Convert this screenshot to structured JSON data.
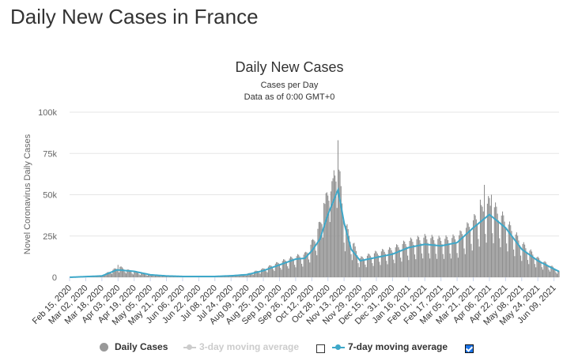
{
  "page": {
    "title": "Daily New Cases in France"
  },
  "chart_data": {
    "type": "bar",
    "title": "Daily New Cases",
    "subtitle_1": "Cases per Day",
    "subtitle_2": "Data as of 0:00 GMT+0",
    "ylabel": "Novel Coronavirus Daily Cases",
    "xlabel": "",
    "ylim": [
      0,
      100000
    ],
    "yticks": [
      0,
      25000,
      50000,
      75000,
      100000
    ],
    "ytick_labels": [
      "0",
      "25k",
      "50k",
      "75k",
      "100k"
    ],
    "grid": true,
    "legend_position": "bottom",
    "x_start": "Feb 15, 2020",
    "x_end": "Jun 14, 2021",
    "x_tick_labels": [
      "Feb 15, 2020",
      "Mar 02, 2020",
      "Mar 18, 2020",
      "Apr 03, 2020",
      "Apr 19, 2020",
      "May 05, 2020",
      "May 21, 2020",
      "Jun 06, 2020",
      "Jun 22, 2020",
      "Jul 08, 2020",
      "Jul 24, 2020",
      "Aug 09, 2020",
      "Aug 25, 2020",
      "Sep 10, 2020",
      "Sep 26, 2020",
      "Oct 12, 2020",
      "Oct 28, 2020",
      "Nov 13, 2020",
      "Nov 29, 2020",
      "Dec 15, 2020",
      "Dec 31, 2020",
      "Jan 16, 2021",
      "Feb 01, 2021",
      "Feb 17, 2021",
      "Mar 05, 2021",
      "Mar 21, 2021",
      "Apr 06, 2021",
      "Apr 22, 2021",
      "May 08, 2021",
      "May 24, 2021",
      "Jun 09, 2021"
    ],
    "daily_anchors": [
      [
        "Feb 15, 2020",
        0
      ],
      [
        "Mar 02, 2020",
        100
      ],
      [
        "Mar 18, 2020",
        1000
      ],
      [
        "Mar 31, 2020",
        4500
      ],
      [
        "Apr 05, 2020",
        5500
      ],
      [
        "Apr 12, 2020",
        4000
      ],
      [
        "Apr 19, 2020",
        3000
      ],
      [
        "May 05, 2020",
        1500
      ],
      [
        "May 21, 2020",
        600
      ],
      [
        "Jun 06, 2020",
        400
      ],
      [
        "Jun 22, 2020",
        400
      ],
      [
        "Jul 08, 2020",
        500
      ],
      [
        "Jul 24, 2020",
        1000
      ],
      [
        "Aug 09, 2020",
        1800
      ],
      [
        "Aug 25, 2020",
        4500
      ],
      [
        "Sep 10, 2020",
        8000
      ],
      [
        "Sep 26, 2020",
        11000
      ],
      [
        "Oct 05, 2020",
        12000
      ],
      [
        "Oct 12, 2020",
        18000
      ],
      [
        "Oct 20, 2020",
        28000
      ],
      [
        "Oct 28, 2020",
        45000
      ],
      [
        "Nov 02, 2020",
        52000
      ],
      [
        "Nov 07, 2020",
        62000
      ],
      [
        "Nov 13, 2020",
        30000
      ],
      [
        "Nov 20, 2020",
        20000
      ],
      [
        "Nov 29, 2020",
        10000
      ],
      [
        "Dec 15, 2020",
        13000
      ],
      [
        "Dec 31, 2020",
        15000
      ],
      [
        "Jan 16, 2021",
        19000
      ],
      [
        "Feb 01, 2021",
        21000
      ],
      [
        "Feb 17, 2021",
        20000
      ],
      [
        "Mar 05, 2021",
        21000
      ],
      [
        "Mar 21, 2021",
        30000
      ],
      [
        "Apr 06, 2021",
        40000
      ],
      [
        "Apr 22, 2021",
        30000
      ],
      [
        "May 08, 2021",
        18000
      ],
      [
        "May 24, 2021",
        10000
      ],
      [
        "Jun 09, 2021",
        5000
      ],
      [
        "Jun 14, 2021",
        3000
      ]
    ],
    "daily_spikes": [
      [
        "Nov 07, 2020",
        83000
      ],
      [
        "Nov 02, 2020",
        60000
      ],
      [
        "Oct 31, 2020",
        52000
      ],
      [
        "Apr 01, 2021",
        56000
      ],
      [
        "Mar 28, 2021",
        47000
      ],
      [
        "Apr 08, 2021",
        50000
      ],
      [
        "Oct 24, 2020",
        45000
      ],
      [
        "Apr 03, 2020",
        7500
      ]
    ],
    "series": [
      {
        "name": "Daily Cases",
        "color": "#999999",
        "visible": true
      },
      {
        "name": "3-day moving average",
        "color": "#cccccc",
        "visible": false
      },
      {
        "name": "7-day moving average",
        "color": "#3ea8c9",
        "visible": true,
        "anchors": [
          [
            "Feb 15, 2020",
            0
          ],
          [
            "Mar 18, 2020",
            800
          ],
          [
            "Apr 02, 2020",
            4500
          ],
          [
            "Apr 19, 2020",
            3600
          ],
          [
            "May 05, 2020",
            1500
          ],
          [
            "May 21, 2020",
            800
          ],
          [
            "Jun 06, 2020",
            500
          ],
          [
            "Jul 08, 2020",
            500
          ],
          [
            "Jul 24, 2020",
            900
          ],
          [
            "Aug 09, 2020",
            1600
          ],
          [
            "Aug 25, 2020",
            4000
          ],
          [
            "Sep 10, 2020",
            7500
          ],
          [
            "Sep 26, 2020",
            11000
          ],
          [
            "Oct 05, 2020",
            11500
          ],
          [
            "Oct 12, 2020",
            16000
          ],
          [
            "Oct 20, 2020",
            23000
          ],
          [
            "Oct 28, 2020",
            38000
          ],
          [
            "Nov 07, 2020",
            53000
          ],
          [
            "Nov 13, 2020",
            33000
          ],
          [
            "Nov 20, 2020",
            17000
          ],
          [
            "Nov 29, 2020",
            10000
          ],
          [
            "Dec 15, 2020",
            12000
          ],
          [
            "Dec 31, 2020",
            14000
          ],
          [
            "Jan 16, 2021",
            18000
          ],
          [
            "Feb 01, 2021",
            20000
          ],
          [
            "Feb 17, 2021",
            19000
          ],
          [
            "Mar 05, 2021",
            21000
          ],
          [
            "Mar 21, 2021",
            30000
          ],
          [
            "Apr 06, 2021",
            38000
          ],
          [
            "Apr 22, 2021",
            30000
          ],
          [
            "May 08, 2021",
            17000
          ],
          [
            "May 24, 2021",
            10000
          ],
          [
            "Jun 09, 2021",
            5000
          ],
          [
            "Jun 14, 2021",
            3500
          ]
        ]
      }
    ]
  },
  "legend": {
    "daily_cases": "Daily Cases",
    "avg3": "3-day moving average",
    "avg7": "7-day moving average",
    "avg3_checked": false,
    "avg7_checked": true
  }
}
